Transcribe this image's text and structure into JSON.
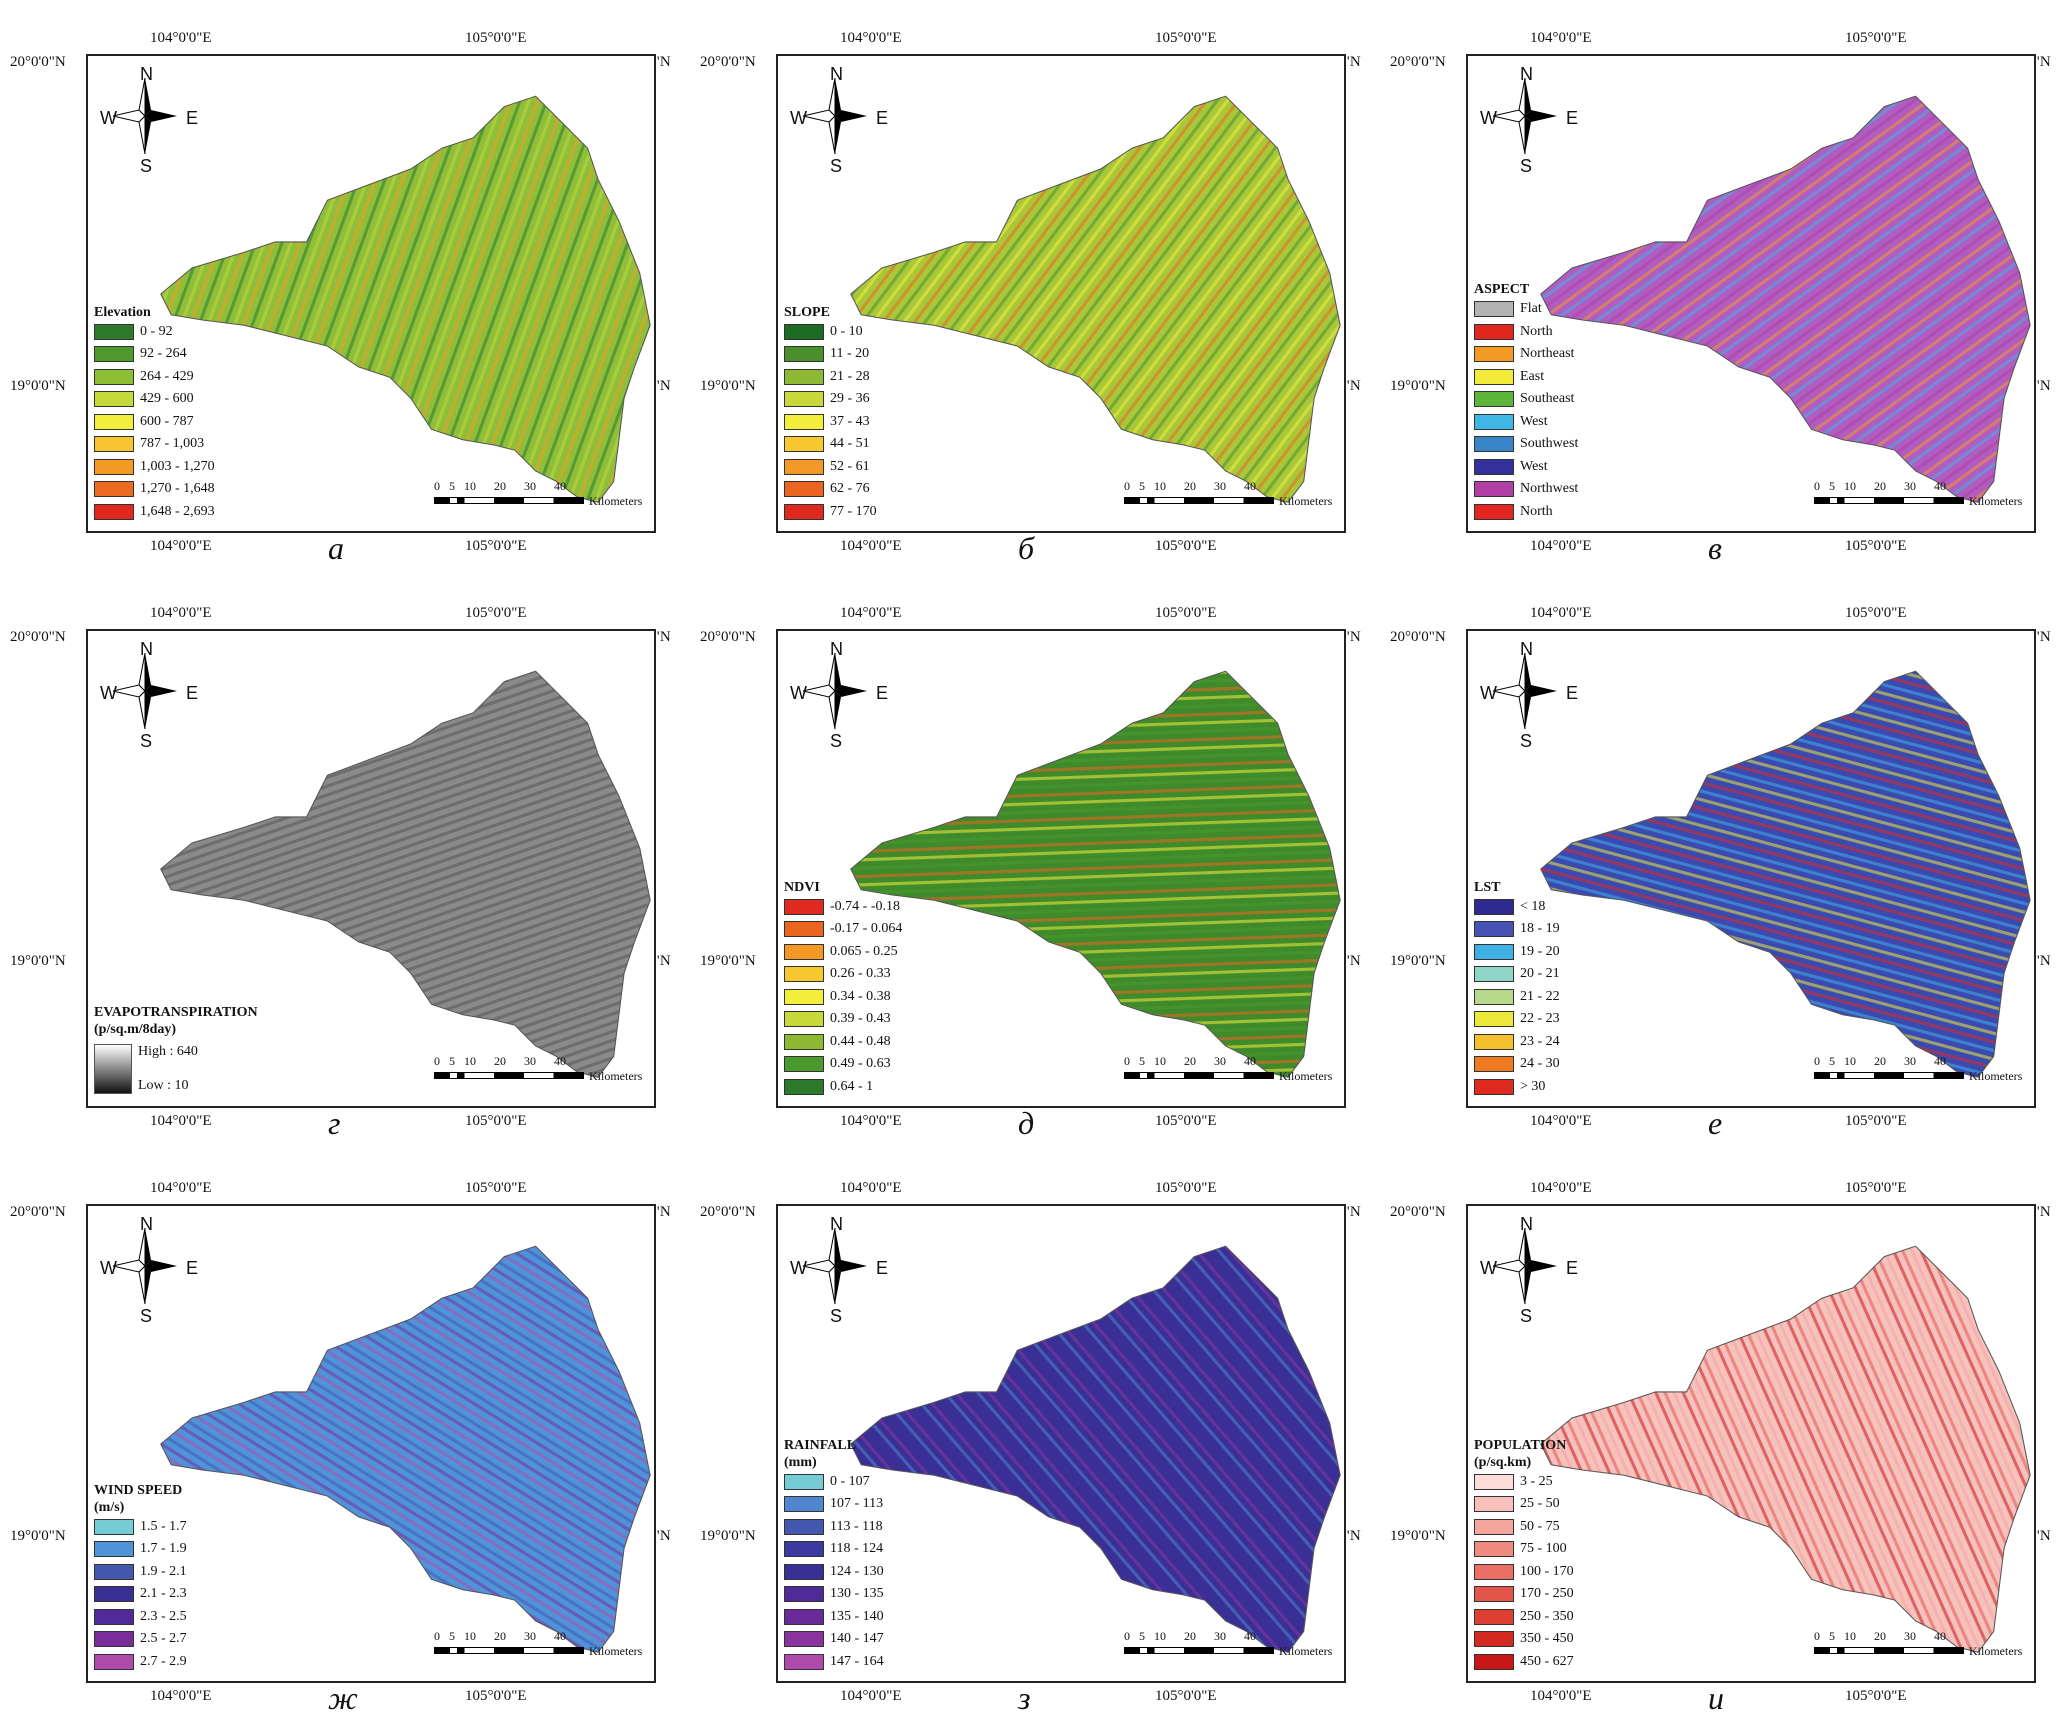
{
  "coords": {
    "lon1": "104°0'0\"E",
    "lon2": "105°0'0\"E",
    "lat1": "20°0'0\"N",
    "lat2": "19°0'0\"N"
  },
  "compass": {
    "n": "N",
    "s": "S",
    "e": "E",
    "w": "W"
  },
  "scalebar": {
    "ticks": [
      "0",
      "5",
      "10",
      "20",
      "30",
      "40"
    ],
    "unit": "Kilometers"
  },
  "panels": [
    {
      "label": "а",
      "legend_title": "Elevation",
      "legend_subtitle": "",
      "fill": "#8fbf3a",
      "items": [
        {
          "label": "0 - 92",
          "color": "#2d7a2a"
        },
        {
          "label": "92 - 264",
          "color": "#4f9a2e"
        },
        {
          "label": "264 - 429",
          "color": "#8cbf34"
        },
        {
          "label": "429 - 600",
          "color": "#c4d93a"
        },
        {
          "label": "600 - 787",
          "color": "#f2ee3c"
        },
        {
          "label": "787 - 1,003",
          "color": "#f7c530"
        },
        {
          "label": "1,003 - 1,270",
          "color": "#f39a25"
        },
        {
          "label": "1,270 - 1,648",
          "color": "#ec6a1f"
        },
        {
          "label": "1,648 - 2,693",
          "color": "#e0281f"
        }
      ]
    },
    {
      "label": "б",
      "legend_title": "SLOPE",
      "legend_subtitle": "",
      "fill": "#a8c83a",
      "items": [
        {
          "label": "0 - 10",
          "color": "#1e6b24"
        },
        {
          "label": "11 - 20",
          "color": "#4a8f2c"
        },
        {
          "label": "21 - 28",
          "color": "#8cb834"
        },
        {
          "label": "29 - 36",
          "color": "#c6d83a"
        },
        {
          "label": "37 - 43",
          "color": "#f3ed3c"
        },
        {
          "label": "44 - 51",
          "color": "#f7c72f"
        },
        {
          "label": "52 - 61",
          "color": "#f39826"
        },
        {
          "label": "62 - 76",
          "color": "#ec6520"
        },
        {
          "label": "77 - 170",
          "color": "#df2a20"
        }
      ]
    },
    {
      "label": "в",
      "legend_title": "ASPECT",
      "legend_subtitle": "",
      "fill": "#b05cc0",
      "items": [
        {
          "label": "Flat",
          "color": "#b3b3b3"
        },
        {
          "label": "North",
          "color": "#e0261f"
        },
        {
          "label": "Northeast",
          "color": "#f39a25"
        },
        {
          "label": "East",
          "color": "#f4ea3a"
        },
        {
          "label": "Southeast",
          "color": "#5ab53a"
        },
        {
          "label": "West",
          "color": "#3fb6e6"
        },
        {
          "label": "Southwest",
          "color": "#3a84c8"
        },
        {
          "label": "West",
          "color": "#34309a"
        },
        {
          "label": "Northwest",
          "color": "#b03fa5"
        },
        {
          "label": "North",
          "color": "#e0261f"
        }
      ]
    },
    {
      "label": "г",
      "legend_title": "EVAPOTRANSPIRATION",
      "legend_subtitle": "(p/sq.m/8day)",
      "fill": "#8a8a8a",
      "gradient": {
        "high": "High : 640",
        "low": "Low : 10"
      },
      "items": []
    },
    {
      "label": "д",
      "legend_title": "NDVI",
      "legend_subtitle": "",
      "fill": "#3f8a2a",
      "items": [
        {
          "label": "-0.74 - -0.18",
          "color": "#df2a20"
        },
        {
          "label": "-0.17 - 0.064",
          "color": "#ec6520"
        },
        {
          "label": "0.065 - 0.25",
          "color": "#f39826"
        },
        {
          "label": "0.26 - 0.33",
          "color": "#f7c72f"
        },
        {
          "label": "0.34 - 0.38",
          "color": "#f3ed3c"
        },
        {
          "label": "0.39 - 0.43",
          "color": "#c6d83a"
        },
        {
          "label": "0.44 - 0.48",
          "color": "#8cb834"
        },
        {
          "label": "0.49 - 0.63",
          "color": "#4a9a30"
        },
        {
          "label": "0.64 - 1",
          "color": "#2d7a2a"
        }
      ]
    },
    {
      "label": "е",
      "legend_title": "LST",
      "legend_subtitle": "",
      "fill": "#3a4ab0",
      "items": [
        {
          "label": "< 18",
          "color": "#2e2a8f"
        },
        {
          "label": "18 - 19",
          "color": "#4652b4"
        },
        {
          "label": "19 - 20",
          "color": "#3fb0e6"
        },
        {
          "label": "20 - 21",
          "color": "#8fd6c8"
        },
        {
          "label": "21 - 22",
          "color": "#b6d98c"
        },
        {
          "label": "22 - 23",
          "color": "#ece83a"
        },
        {
          "label": "23 - 24",
          "color": "#f5c02e"
        },
        {
          "label": "24 - 30",
          "color": "#ef7a22"
        },
        {
          "label": "> 30",
          "color": "#df2a20"
        }
      ]
    },
    {
      "label": "ж",
      "legend_title": "WIND SPEED",
      "legend_subtitle": "(m/s)",
      "fill": "#4f93d9",
      "items": [
        {
          "label": "1.5 - 1.7",
          "color": "#76ccd4"
        },
        {
          "label": "1.7 - 1.9",
          "color": "#4f93d9"
        },
        {
          "label": "1.9 - 2.1",
          "color": "#4458b0"
        },
        {
          "label": "2.1 - 2.3",
          "color": "#3a2f95"
        },
        {
          "label": "2.3 - 2.5",
          "color": "#4f2a98"
        },
        {
          "label": "2.5 - 2.7",
          "color": "#7a2c9c"
        },
        {
          "label": "2.7 - 2.9",
          "color": "#b04aac"
        }
      ]
    },
    {
      "label": "з",
      "legend_title": "RAINFALL",
      "legend_subtitle": "(mm)",
      "fill": "#3a2f95",
      "items": [
        {
          "label": "0 - 107",
          "color": "#76ccd4"
        },
        {
          "label": "107 - 113",
          "color": "#4f86cf"
        },
        {
          "label": "113 - 118",
          "color": "#4458b0"
        },
        {
          "label": "118 - 124",
          "color": "#3a3aa0"
        },
        {
          "label": "124 - 130",
          "color": "#3a2f95"
        },
        {
          "label": "130 - 135",
          "color": "#4f2a98"
        },
        {
          "label": "135 - 140",
          "color": "#6a2a9a"
        },
        {
          "label": "140 - 147",
          "color": "#8a34a0"
        },
        {
          "label": "147 - 164",
          "color": "#b04aac"
        }
      ]
    },
    {
      "label": "и",
      "legend_title": "POPULATION",
      "legend_subtitle": "(p/sq.km)",
      "fill": "#f6c2be",
      "items": [
        {
          "label": "3 - 25",
          "color": "#fbdcd8"
        },
        {
          "label": "25 - 50",
          "color": "#f8c0ba"
        },
        {
          "label": "50 - 75",
          "color": "#f4a59c"
        },
        {
          "label": "75 - 100",
          "color": "#ef8a80"
        },
        {
          "label": "100 - 170",
          "color": "#ea6f64"
        },
        {
          "label": "170 - 250",
          "color": "#e4564a"
        },
        {
          "label": "250 - 350",
          "color": "#dd3f33"
        },
        {
          "label": "350 - 450",
          "color": "#d42a22"
        },
        {
          "label": "450 - 627",
          "color": "#c81616"
        }
      ]
    }
  ]
}
